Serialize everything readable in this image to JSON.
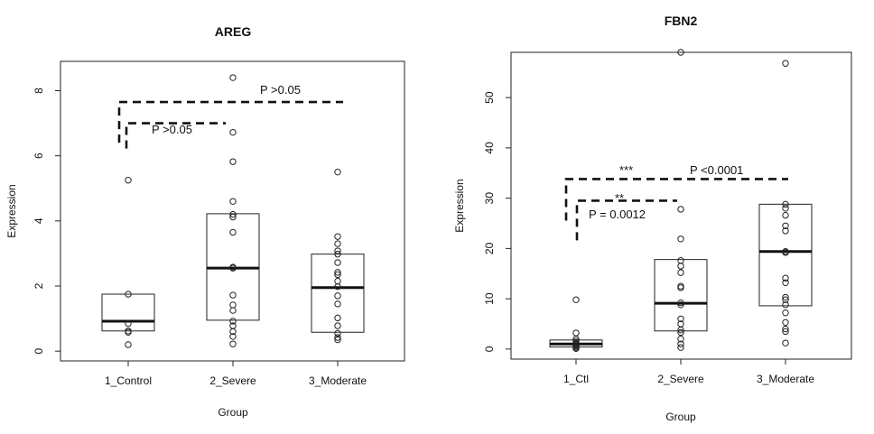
{
  "chart_data": [
    {
      "type": "boxplot",
      "title": "AREG",
      "xlabel": "Group",
      "ylabel": "Expression",
      "ylim": [
        -0.3,
        8.9
      ],
      "yticks": [
        0,
        2,
        4,
        6,
        8
      ],
      "grid": false,
      "categories": [
        "1_Control",
        "2_Severe",
        "3_Moderate"
      ],
      "boxes": [
        {
          "q1": 0.62,
          "median": 0.92,
          "q3": 1.75
        },
        {
          "q1": 0.95,
          "median": 2.55,
          "q3": 4.22
        },
        {
          "q1": 0.58,
          "median": 1.95,
          "q3": 2.98
        }
      ],
      "points": [
        [
          0.2,
          0.58,
          0.62,
          0.85,
          1.75,
          5.25
        ],
        [
          0.22,
          0.45,
          0.6,
          0.78,
          0.92,
          1.25,
          1.42,
          1.72,
          2.55,
          2.58,
          3.65,
          4.12,
          4.2,
          4.6,
          5.82,
          6.72,
          8.4
        ],
        [
          0.35,
          0.42,
          0.55,
          0.78,
          1.02,
          1.45,
          1.7,
          1.98,
          2.15,
          2.35,
          2.42,
          2.72,
          2.98,
          3.08,
          3.3,
          3.52,
          5.5
        ]
      ],
      "annotations": [
        {
          "from": 0,
          "to": 1,
          "level": 7.0,
          "label": "P >0.05",
          "stars": ""
        },
        {
          "from": 0,
          "to": 2,
          "level": 7.65,
          "label": "P >0.05",
          "stars": ""
        }
      ]
    },
    {
      "type": "boxplot",
      "title": "FBN2",
      "xlabel": "Group",
      "ylabel": "Expression",
      "ylim": [
        -2,
        59
      ],
      "yticks": [
        0,
        10,
        20,
        30,
        40,
        50
      ],
      "grid": false,
      "categories": [
        "1_Ctl",
        "2_Severe",
        "3_Moderate"
      ],
      "boxes": [
        {
          "q1": 0.4,
          "median": 1.0,
          "q3": 1.8
        },
        {
          "q1": 3.6,
          "median": 9.1,
          "q3": 17.8
        },
        {
          "q1": 8.6,
          "median": 19.4,
          "q3": 28.8
        }
      ],
      "points": [
        [
          0.1,
          0.3,
          0.5,
          0.7,
          0.9,
          1.1,
          1.3,
          1.6,
          2.0,
          3.2,
          9.8
        ],
        [
          0.3,
          1.0,
          2.0,
          3.3,
          3.8,
          5.0,
          6.0,
          8.8,
          9.2,
          12.2,
          12.5,
          15.2,
          16.5,
          17.6,
          21.9,
          27.8,
          59.0
        ],
        [
          1.2,
          3.5,
          4.0,
          5.3,
          7.2,
          8.8,
          9.8,
          10.3,
          13.2,
          14.1,
          19.2,
          19.4,
          23.5,
          24.5,
          26.6,
          28.0,
          28.8,
          56.8
        ]
      ],
      "annotations": [
        {
          "from": 0,
          "to": 1,
          "level": 29.5,
          "label": "P = 0.0012",
          "stars": "**"
        },
        {
          "from": 0,
          "to": 2,
          "level": 33.8,
          "label": "P <0.0001",
          "stars": "***"
        }
      ]
    }
  ]
}
